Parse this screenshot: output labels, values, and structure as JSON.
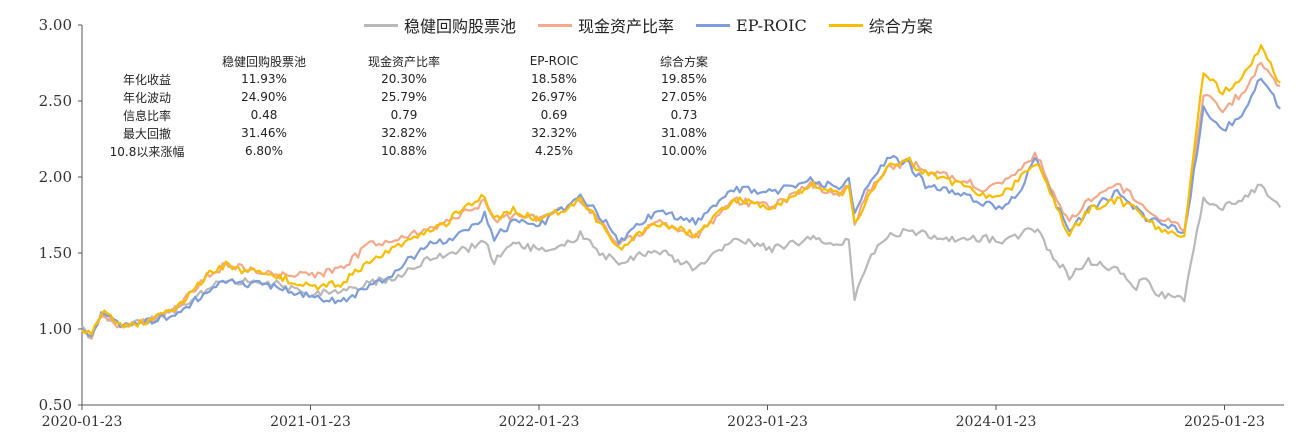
{
  "chart_data": {
    "type": "line",
    "title": "",
    "xlabel": "",
    "ylabel": "",
    "ylim": [
      0.5,
      3.0
    ],
    "yticks": [
      "0.50",
      "1.00",
      "1.50",
      "2.00",
      "2.50",
      "3.00"
    ],
    "xticks": [
      "2020-01-23",
      "2021-01-23",
      "2022-01-23",
      "2023-01-23",
      "2024-01-23",
      "2025-01-23"
    ],
    "x_start": "2020-01-23",
    "x_end": "2025-04-30",
    "legend": [
      "稳健回购股票池",
      "现金资产比率",
      "EP-ROIC",
      "综合方案"
    ],
    "legend_position": "top",
    "series": [
      {
        "name": "稳健回购股票池",
        "color": "#b9b9b9",
        "x": [
          0.0,
          0.05,
          0.1,
          0.2,
          0.35,
          0.5,
          0.65,
          0.75,
          0.85,
          1.0,
          1.2,
          1.35,
          1.5,
          1.6,
          1.7,
          1.8,
          1.9,
          2.0,
          2.1,
          2.15,
          2.25,
          2.4,
          2.5,
          2.6,
          2.7,
          2.8,
          3.0,
          3.2,
          3.4,
          3.6,
          3.8,
          3.95,
          4.0,
          4.03,
          4.1,
          4.2,
          4.3,
          4.4,
          4.6,
          4.7,
          4.8,
          4.9,
          4.97,
          5.0,
          5.05,
          5.15,
          5.25,
          5.4,
          5.5,
          5.55,
          5.6,
          5.65,
          5.75,
          5.85,
          5.95,
          6.05,
          6.15,
          6.25
        ],
        "values": [
          1.0,
          0.95,
          1.1,
          1.02,
          1.05,
          1.13,
          1.26,
          1.32,
          1.31,
          1.3,
          1.23,
          1.25,
          1.3,
          1.33,
          1.38,
          1.45,
          1.5,
          1.52,
          1.57,
          1.45,
          1.56,
          1.52,
          1.55,
          1.62,
          1.5,
          1.44,
          1.52,
          1.4,
          1.6,
          1.52,
          1.6,
          1.54,
          1.6,
          1.2,
          1.45,
          1.6,
          1.65,
          1.62,
          1.58,
          1.6,
          1.57,
          1.62,
          1.66,
          1.62,
          1.5,
          1.35,
          1.45,
          1.38,
          1.28,
          1.34,
          1.24,
          1.22,
          1.2,
          1.85,
          1.8,
          1.85,
          1.95,
          1.8
        ]
      },
      {
        "name": "现金资产比率",
        "color": "#f2a98c",
        "x": [
          0.0,
          0.05,
          0.1,
          0.2,
          0.35,
          0.5,
          0.65,
          0.75,
          0.85,
          1.0,
          1.2,
          1.35,
          1.5,
          1.6,
          1.7,
          1.8,
          1.9,
          2.0,
          2.1,
          2.15,
          2.25,
          2.4,
          2.5,
          2.6,
          2.7,
          2.8,
          3.0,
          3.2,
          3.4,
          3.6,
          3.8,
          3.95,
          4.0,
          4.03,
          4.1,
          4.2,
          4.3,
          4.4,
          4.6,
          4.7,
          4.8,
          4.9,
          4.97,
          5.0,
          5.05,
          5.15,
          5.25,
          5.4,
          5.5,
          5.55,
          5.6,
          5.65,
          5.75,
          5.85,
          5.95,
          6.05,
          6.15,
          6.25
        ],
        "values": [
          1.0,
          0.95,
          1.1,
          1.02,
          1.05,
          1.14,
          1.35,
          1.42,
          1.4,
          1.36,
          1.35,
          1.4,
          1.55,
          1.58,
          1.62,
          1.65,
          1.7,
          1.78,
          1.83,
          1.7,
          1.75,
          1.72,
          1.78,
          1.85,
          1.72,
          1.55,
          1.7,
          1.6,
          1.85,
          1.8,
          1.95,
          1.88,
          1.95,
          1.7,
          1.9,
          2.05,
          2.1,
          2.05,
          1.98,
          1.92,
          1.95,
          2.05,
          2.15,
          2.1,
          1.95,
          1.7,
          1.85,
          1.95,
          1.85,
          1.8,
          1.75,
          1.72,
          1.65,
          2.55,
          2.45,
          2.55,
          2.75,
          2.6
        ]
      },
      {
        "name": "EP-ROIC",
        "color": "#7f9ed9",
        "x": [
          0.0,
          0.05,
          0.1,
          0.2,
          0.35,
          0.5,
          0.65,
          0.75,
          0.85,
          1.0,
          1.2,
          1.35,
          1.5,
          1.6,
          1.7,
          1.8,
          1.9,
          2.0,
          2.1,
          2.15,
          2.25,
          2.4,
          2.5,
          2.6,
          2.7,
          2.8,
          3.0,
          3.2,
          3.4,
          3.6,
          3.8,
          3.95,
          4.0,
          4.03,
          4.1,
          4.2,
          4.3,
          4.4,
          4.6,
          4.7,
          4.8,
          4.9,
          4.97,
          5.0,
          5.05,
          5.15,
          5.25,
          5.4,
          5.5,
          5.55,
          5.6,
          5.65,
          5.75,
          5.85,
          5.95,
          6.05,
          6.15,
          6.25
        ],
        "values": [
          1.0,
          0.95,
          1.1,
          1.02,
          1.05,
          1.1,
          1.25,
          1.32,
          1.3,
          1.28,
          1.22,
          1.18,
          1.28,
          1.35,
          1.45,
          1.55,
          1.58,
          1.64,
          1.75,
          1.6,
          1.7,
          1.7,
          1.78,
          1.88,
          1.75,
          1.58,
          1.78,
          1.7,
          1.92,
          1.9,
          1.98,
          1.93,
          1.98,
          1.75,
          1.95,
          2.12,
          2.1,
          1.95,
          1.88,
          1.82,
          1.8,
          1.92,
          2.12,
          2.05,
          1.9,
          1.65,
          1.78,
          1.9,
          1.78,
          1.72,
          1.72,
          1.7,
          1.62,
          2.45,
          2.3,
          2.42,
          2.65,
          2.45
        ]
      },
      {
        "name": "综合方案",
        "color": "#f7bd00",
        "x": [
          0.0,
          0.05,
          0.1,
          0.2,
          0.35,
          0.5,
          0.65,
          0.75,
          0.85,
          1.0,
          1.2,
          1.35,
          1.5,
          1.6,
          1.7,
          1.8,
          1.9,
          2.0,
          2.1,
          2.15,
          2.25,
          2.4,
          2.5,
          2.6,
          2.7,
          2.8,
          3.0,
          3.2,
          3.4,
          3.6,
          3.8,
          3.95,
          4.0,
          4.03,
          4.1,
          4.2,
          4.3,
          4.4,
          4.6,
          4.7,
          4.8,
          4.9,
          4.97,
          5.0,
          5.05,
          5.15,
          5.25,
          5.4,
          5.5,
          5.55,
          5.6,
          5.65,
          5.75,
          5.85,
          5.95,
          6.05,
          6.15,
          6.25
        ],
        "values": [
          1.0,
          0.95,
          1.12,
          1.02,
          1.05,
          1.15,
          1.35,
          1.42,
          1.38,
          1.35,
          1.28,
          1.3,
          1.45,
          1.52,
          1.58,
          1.63,
          1.7,
          1.8,
          1.88,
          1.72,
          1.78,
          1.72,
          1.78,
          1.85,
          1.7,
          1.52,
          1.7,
          1.62,
          1.85,
          1.8,
          1.95,
          1.88,
          1.95,
          1.68,
          1.88,
          2.08,
          2.12,
          2.02,
          1.95,
          1.88,
          1.88,
          2.0,
          2.1,
          2.05,
          1.9,
          1.62,
          1.78,
          1.85,
          1.78,
          1.72,
          1.68,
          1.65,
          1.62,
          2.7,
          2.55,
          2.65,
          2.85,
          2.62
        ]
      }
    ],
    "stats_table": {
      "columns": [
        "稳健回购股票池",
        "现金资产比率",
        "EP-ROIC",
        "综合方案"
      ],
      "rows": [
        {
          "label": "年化收益",
          "values": [
            "11.93%",
            "20.30%",
            "18.58%",
            "19.85%"
          ]
        },
        {
          "label": "年化波动",
          "values": [
            "24.90%",
            "25.79%",
            "26.97%",
            "27.05%"
          ]
        },
        {
          "label": "信息比率",
          "values": [
            "0.48",
            "0.79",
            "0.69",
            "0.73"
          ]
        },
        {
          "label": "最大回撤",
          "values": [
            "31.46%",
            "32.82%",
            "32.32%",
            "31.08%"
          ]
        },
        {
          "label": "10.8以来涨幅",
          "values": [
            "6.80%",
            "10.88%",
            "4.25%",
            "10.00%"
          ]
        }
      ]
    }
  }
}
